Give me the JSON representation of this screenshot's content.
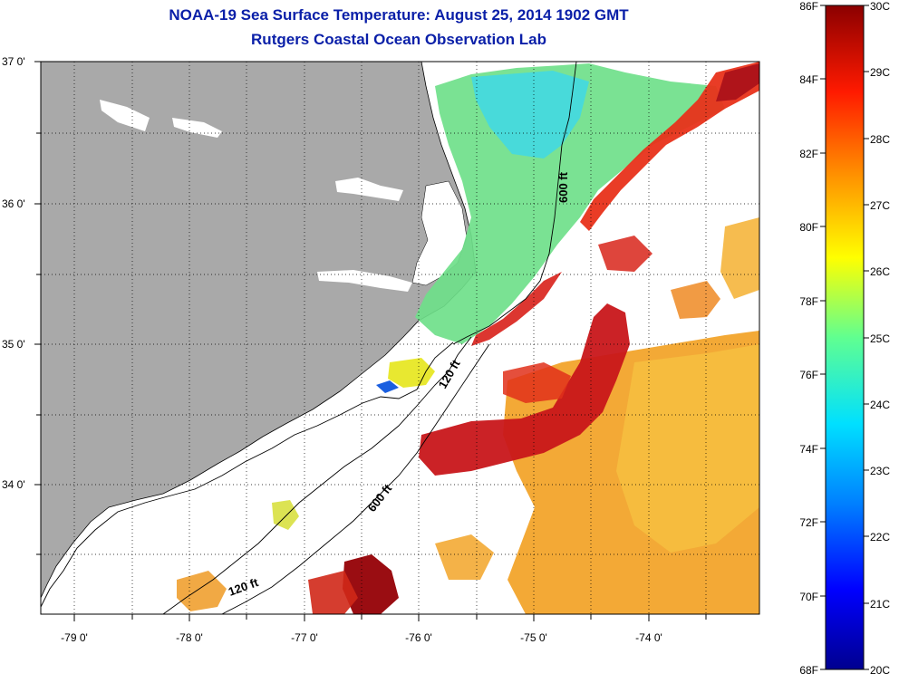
{
  "header": {
    "title": "NOAA-19 Sea Surface Temperature:  August 25, 2014 1902 GMT",
    "subtitle": "Rutgers Coastal Ocean Observation Lab"
  },
  "axes": {
    "lat_labels": [
      "37 0'",
      "36 0'",
      "35 0'",
      "34 0'"
    ],
    "lon_labels": [
      "-79 0'",
      "-78 0'",
      "-77 0'",
      "-76 0'",
      "-75 0'",
      "-74 0'"
    ]
  },
  "contours": {
    "label_600_north": "600 ft",
    "label_120": "120 ft",
    "label_600_south": "600 ft"
  },
  "colorbar": {
    "fahrenheit": [
      "86F",
      "84F",
      "82F",
      "80F",
      "78F",
      "76F",
      "74F",
      "72F",
      "70F",
      "68F"
    ],
    "celsius": [
      "30C",
      "29C",
      "28C",
      "27C",
      "26C",
      "25C",
      "24C",
      "23C",
      "22C",
      "21C",
      "20C"
    ]
  },
  "colors": {
    "land": "#a9a9a9",
    "title": "#0a1fa8",
    "cold_shelf": "#6fe08a",
    "gulf_stream_core": "#c8161a",
    "warm_offshore": "#f2a020"
  }
}
